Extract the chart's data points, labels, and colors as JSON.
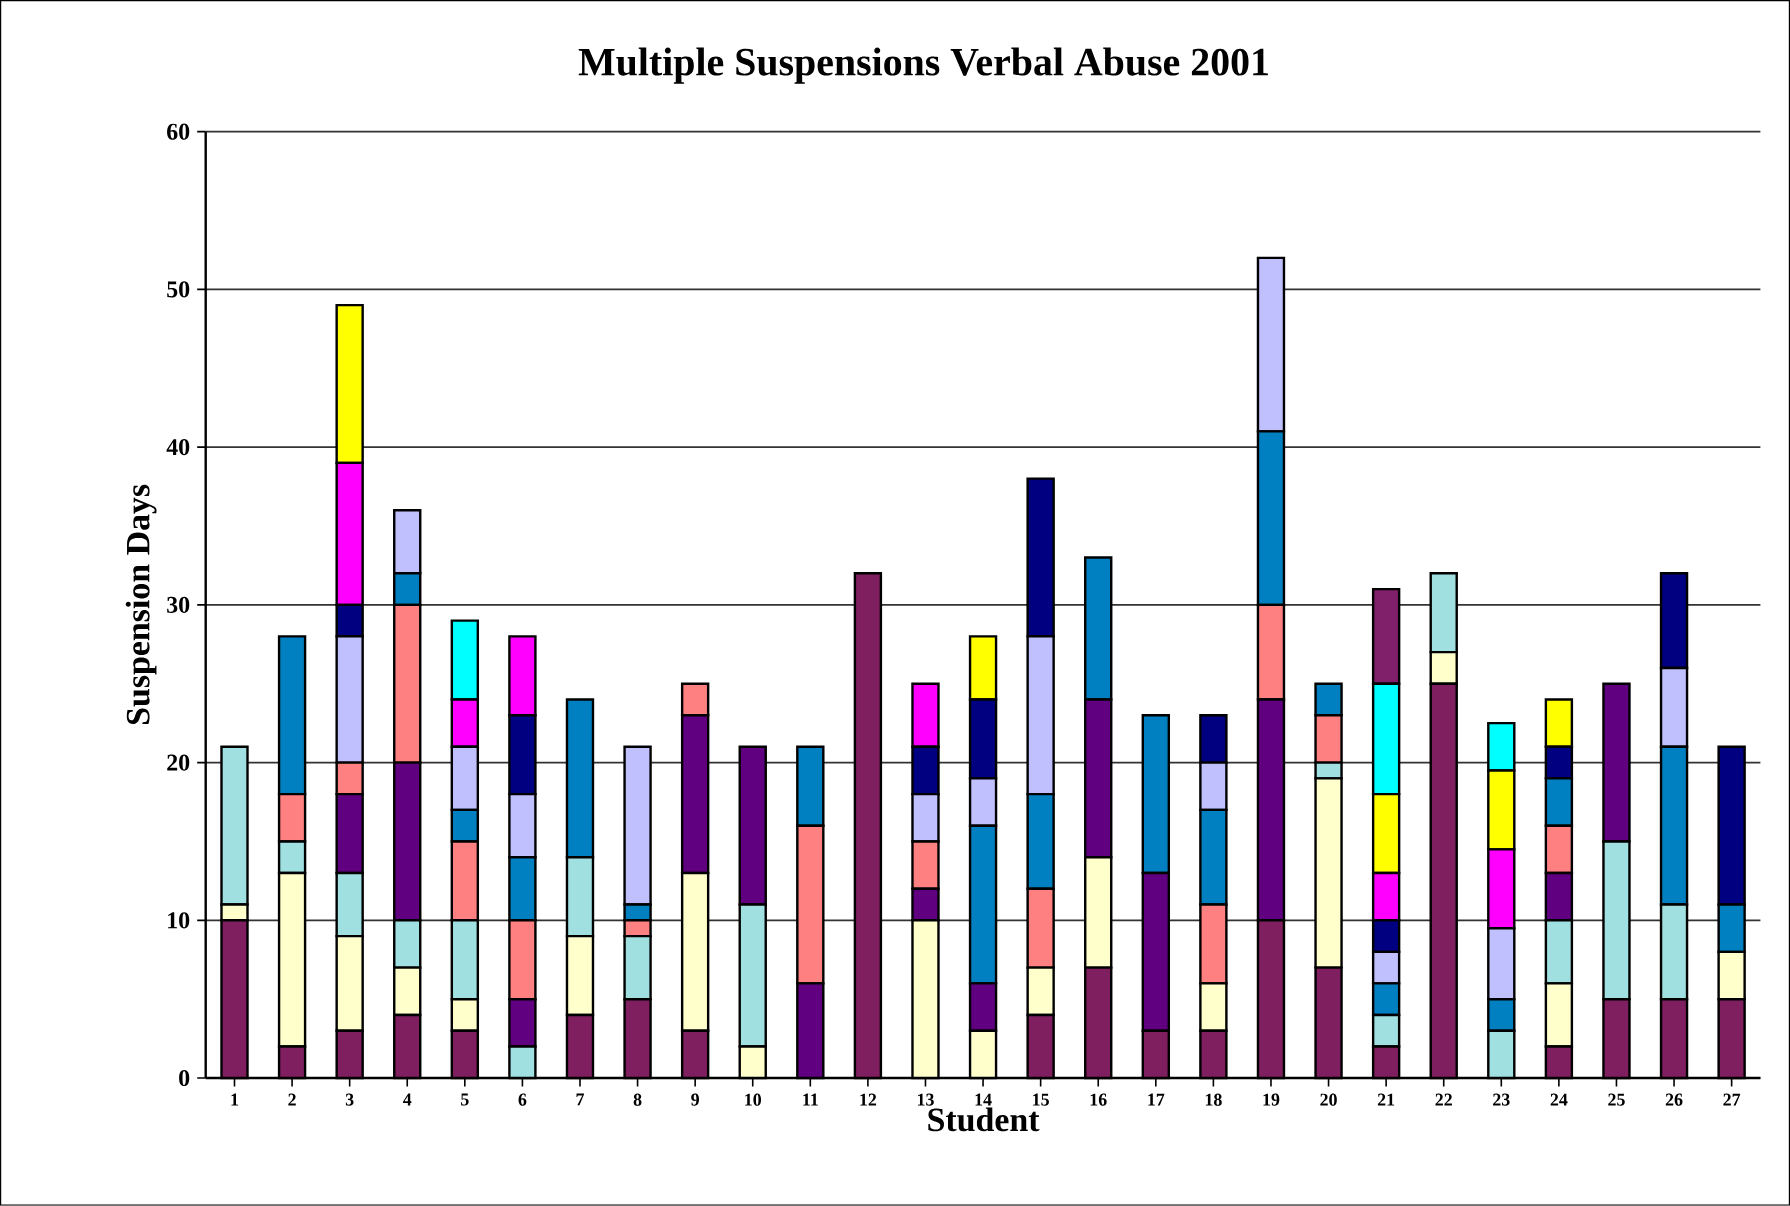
{
  "chart_data": {
    "type": "bar",
    "title": "Multiple Suspensions Verbal Abuse 2001",
    "xlabel": "Student",
    "ylabel": "Suspension Days",
    "categories": [
      "1",
      "2",
      "3",
      "4",
      "5",
      "6",
      "7",
      "8",
      "9",
      "10",
      "11",
      "12",
      "13",
      "14",
      "15",
      "16",
      "17",
      "18",
      "19",
      "20",
      "21",
      "22",
      "23",
      "24",
      "25",
      "26",
      "27"
    ],
    "stacked": true,
    "grid": "y",
    "ylim": [
      0,
      60
    ],
    "yticks": [
      0,
      10,
      20,
      30,
      40,
      50,
      60
    ],
    "series": [
      {
        "color": "#7f1f5f",
        "values": [
          10,
          2,
          3,
          4,
          3,
          0,
          4,
          5,
          3,
          0,
          0,
          32,
          0,
          0,
          4,
          7,
          3,
          3,
          10,
          7,
          2,
          25,
          0,
          2,
          5,
          5,
          5
        ]
      },
      {
        "color": "#ffffcc",
        "values": [
          1,
          11,
          6,
          3,
          2,
          0,
          5,
          0,
          10,
          2,
          0,
          0,
          10,
          3,
          3,
          7,
          0,
          3,
          0,
          12,
          0,
          2,
          0,
          4,
          0,
          0,
          3
        ]
      },
      {
        "color": "#a0e0e0",
        "values": [
          10,
          2,
          4,
          3,
          5,
          2,
          5,
          4,
          0,
          9,
          0,
          0,
          0,
          0,
          0,
          0,
          0,
          0,
          0,
          1,
          2,
          5,
          3,
          4,
          10,
          6,
          0
        ]
      },
      {
        "color": "#600080",
        "values": [
          0,
          0,
          5,
          10,
          0,
          3,
          0,
          0,
          10,
          10,
          6,
          0,
          2,
          3,
          0,
          10,
          10,
          0,
          14,
          0,
          0,
          0,
          0,
          3,
          10,
          0,
          0
        ]
      },
      {
        "color": "#ff8080",
        "values": [
          0,
          3,
          2,
          10,
          5,
          5,
          0,
          1,
          2,
          0,
          10,
          0,
          3,
          0,
          5,
          0,
          0,
          5,
          6,
          3,
          0,
          0,
          0,
          3,
          0,
          0,
          0
        ]
      },
      {
        "color": "#0080c0",
        "values": [
          0,
          10,
          0,
          2,
          2,
          4,
          10,
          1,
          0,
          0,
          5,
          0,
          0,
          10,
          6,
          9,
          10,
          6,
          11,
          2,
          2,
          0,
          2,
          3,
          0,
          10,
          3
        ]
      },
      {
        "color": "#c0c0ff",
        "values": [
          0,
          0,
          8,
          4,
          4,
          4,
          0,
          10,
          0,
          0,
          0,
          0,
          3,
          3,
          10,
          0,
          0,
          3,
          11,
          0,
          2,
          0,
          4.5,
          0,
          0,
          5,
          0
        ]
      },
      {
        "color": "#000080",
        "values": [
          0,
          0,
          2,
          0,
          0,
          5,
          0,
          0,
          0,
          0,
          0,
          0,
          3,
          5,
          10,
          0,
          0,
          3,
          0,
          0,
          2,
          0,
          0,
          2,
          0,
          6,
          10
        ]
      },
      {
        "color": "#ff00ff",
        "values": [
          0,
          0,
          9,
          0,
          3,
          5,
          0,
          0,
          0,
          0,
          0,
          0,
          4,
          0,
          0,
          0,
          0,
          0,
          0,
          0,
          3,
          0,
          5,
          0,
          0,
          0,
          0
        ]
      },
      {
        "color": "#ffff00",
        "values": [
          0,
          0,
          10,
          0,
          0,
          0,
          0,
          0,
          0,
          0,
          0,
          0,
          0,
          4,
          0,
          0,
          0,
          0,
          0,
          0,
          5,
          0,
          5,
          3,
          0,
          0,
          0
        ]
      },
      {
        "color": "#00ffff",
        "values": [
          0,
          0,
          0,
          0,
          5,
          0,
          0,
          0,
          0,
          0,
          0,
          0,
          0,
          0,
          0,
          0,
          0,
          0,
          0,
          0,
          7,
          0,
          3,
          0,
          0,
          0,
          0
        ]
      },
      {
        "color": "#80206a",
        "values": [
          0,
          0,
          0,
          0,
          0,
          0,
          0,
          0,
          0,
          0,
          0,
          0,
          0,
          0,
          0,
          0,
          0,
          0,
          0,
          0,
          6,
          0,
          0,
          0,
          0,
          0,
          0
        ]
      }
    ]
  }
}
